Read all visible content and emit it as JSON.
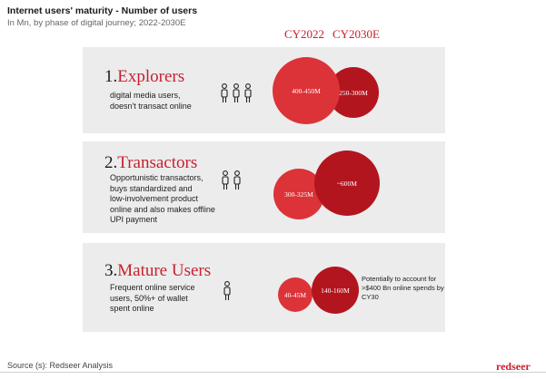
{
  "title": "Internet users' maturity - Number of users",
  "subtitle": "In Mn, by phase of digital journey; 2022-2030E",
  "columns": [
    "CY2022",
    "CY2030E"
  ],
  "segments": [
    {
      "number": "1.",
      "name": "Explorers",
      "description": "digital media users,\ndoesn't transact online",
      "people_icons": 3,
      "cy2022": "400-450M",
      "cy2030": "250-300M"
    },
    {
      "number": "2.",
      "name": "Transactors",
      "description": "Opportunistic transactors,\nbuys standardized and\nlow-involvement product\nonline and also makes offline\nUPI payment",
      "people_icons": 2,
      "cy2022": "300-325M",
      "cy2030": "~600M"
    },
    {
      "number": "3.",
      "name": "Mature Users",
      "description": "Frequent online service\nusers, 50%+ of wallet\nspent online",
      "people_icons": 1,
      "cy2022": "40-45M",
      "cy2030": "140-160M"
    }
  ],
  "note": "Potentially to account for >$400 Bn online spends by CY30",
  "source": "Source (s): Redseer Analysis",
  "logo": "redseer",
  "colors": {
    "cy2022": "#dc3338",
    "cy2030": "#b3151f",
    "panel": "#ececec",
    "accent": "#c8202f"
  },
  "chart_data": {
    "type": "bubble",
    "title": "Internet users' maturity - Number of users",
    "subtitle": "In Mn, by phase of digital journey; 2022-2030E",
    "categories": [
      "Explorers",
      "Transactors",
      "Mature Users"
    ],
    "series": [
      {
        "name": "CY2022",
        "values": [
          "400-450M",
          "300-325M",
          "40-45M"
        ]
      },
      {
        "name": "CY2030E",
        "values": [
          "250-300M",
          "~600M",
          "140-160M"
        ]
      }
    ]
  }
}
